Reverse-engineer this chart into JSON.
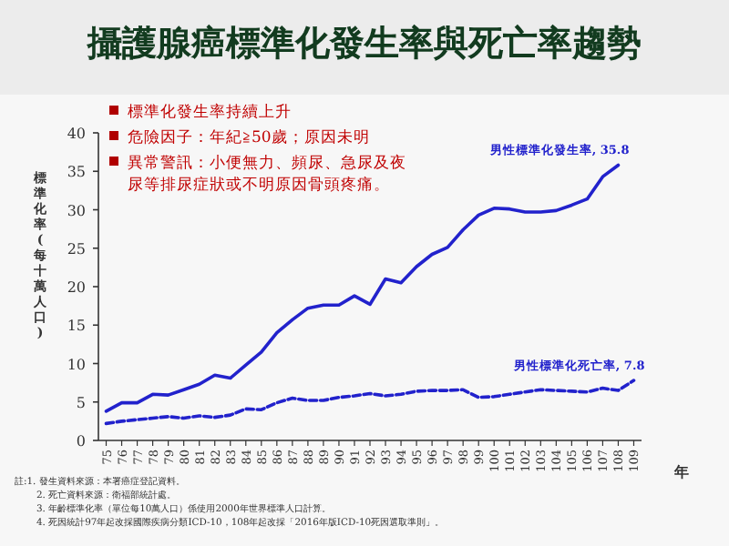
{
  "chart_data": {
    "type": "line",
    "title": "攝護腺癌標準化發生率與死亡率趨勢",
    "ylabel": "標準化率(每十萬人口)",
    "xlabel": "年",
    "categories": [
      "75",
      "76",
      "77",
      "78",
      "79",
      "80",
      "81",
      "82",
      "83",
      "84",
      "85",
      "86",
      "87",
      "88",
      "89",
      "90",
      "91",
      "92",
      "93",
      "94",
      "95",
      "96",
      "97",
      "98",
      "99",
      "100",
      "101",
      "102",
      "103",
      "104",
      "105",
      "106",
      "107",
      "108",
      "109"
    ],
    "series": [
      {
        "name": "男性標準化發生率, 35.8",
        "color": "#2222cc",
        "line_style": "solid",
        "values": [
          3.8,
          4.9,
          4.9,
          6.0,
          5.9,
          6.6,
          7.3,
          8.5,
          8.1,
          9.8,
          11.5,
          14.0,
          15.7,
          17.2,
          17.6,
          17.6,
          18.8,
          17.7,
          21.0,
          20.5,
          22.6,
          24.2,
          25.1,
          27.4,
          29.3,
          30.2,
          30.1,
          29.7,
          29.7,
          29.9,
          30.6,
          31.4,
          34.3,
          35.8,
          null
        ]
      },
      {
        "name": "男性標準化死亡率, 7.8",
        "color": "#2222cc",
        "line_style": "dashed",
        "values": [
          2.2,
          2.5,
          2.7,
          2.9,
          3.1,
          2.9,
          3.2,
          3.0,
          3.3,
          4.1,
          4.0,
          4.9,
          5.5,
          5.2,
          5.2,
          5.6,
          5.8,
          6.1,
          5.8,
          6.0,
          6.4,
          6.5,
          6.5,
          6.6,
          5.6,
          5.7,
          6.0,
          6.3,
          6.6,
          6.5,
          6.4,
          6.3,
          6.8,
          6.5,
          7.8
        ]
      }
    ],
    "ylim": [
      0,
      40
    ],
    "yticks": [
      0,
      5,
      10,
      15,
      20,
      25,
      30,
      35,
      40
    ],
    "grid": false,
    "marker": "none",
    "annotations": [
      "標準化發生率持續上升",
      "危險因子：年紀≧50歲；原因未明",
      "異常警訊：小便無力、頻尿、急尿及夜尿等排尿症狀或不明原因骨頭疼痛。",
      "註:1. 發生資料來源：本署癌症登記資料。",
      "2. 死亡資料來源：衛福部統計處。",
      "3. 年齡標準化率（單位每10萬人口）係使用2000年世界標準人口計算。",
      "4. 死因統計97年起改採國際疾病分類ICD-10，108年起改採「2016年版ICD-10死因選取準則」。"
    ]
  }
}
